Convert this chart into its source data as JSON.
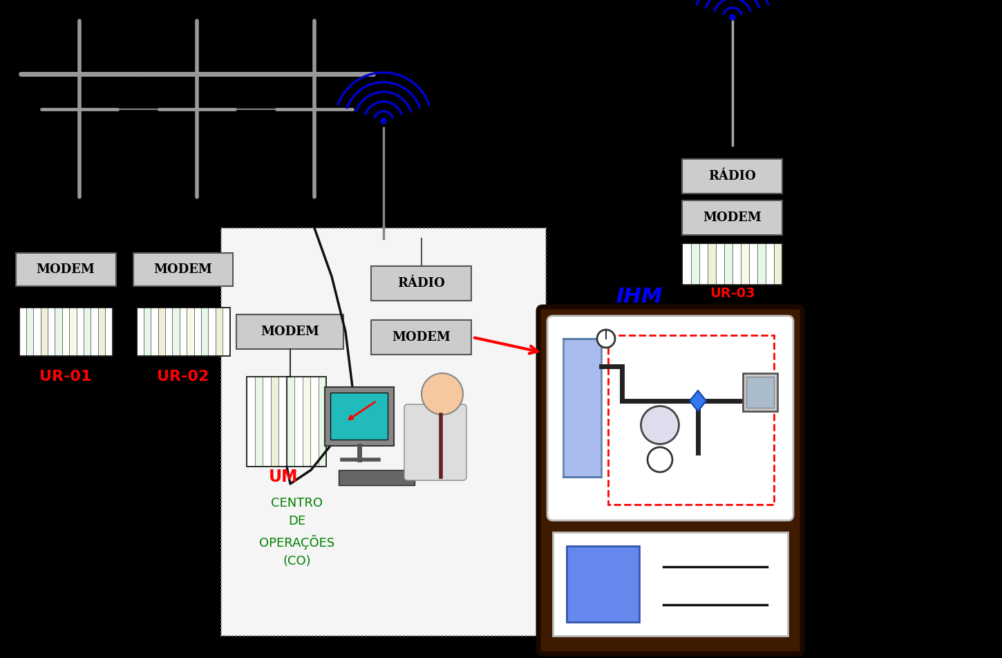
{
  "bg": "#000000",
  "modem_text": "MODEM",
  "radio_text": "RÁDIO",
  "ur01_text": "UR-01",
  "ur02_text": "UR-02",
  "ur03_text": "UR-03",
  "ihm_text": "IHM",
  "um_text": "UM",
  "co_text": "CENTRO\nDE\nOPERAÇÕES\n(CO)",
  "red": "#ff0000",
  "blue": "#0000ff",
  "green": "#008000",
  "dark_brown": "#3d1a00",
  "light_grey": "#c8c8c8",
  "box_edge": "#555555",
  "wire_color": "#888888",
  "pole_color": "#999999",
  "dark_blue": "#0000cc",
  "blue_rect": "#6688ee",
  "tank_blue": "#aabbee",
  "co_bg": "#f5f5f5",
  "co_edge": "#888888",
  "ihm_inner_bg": "#ffffff"
}
